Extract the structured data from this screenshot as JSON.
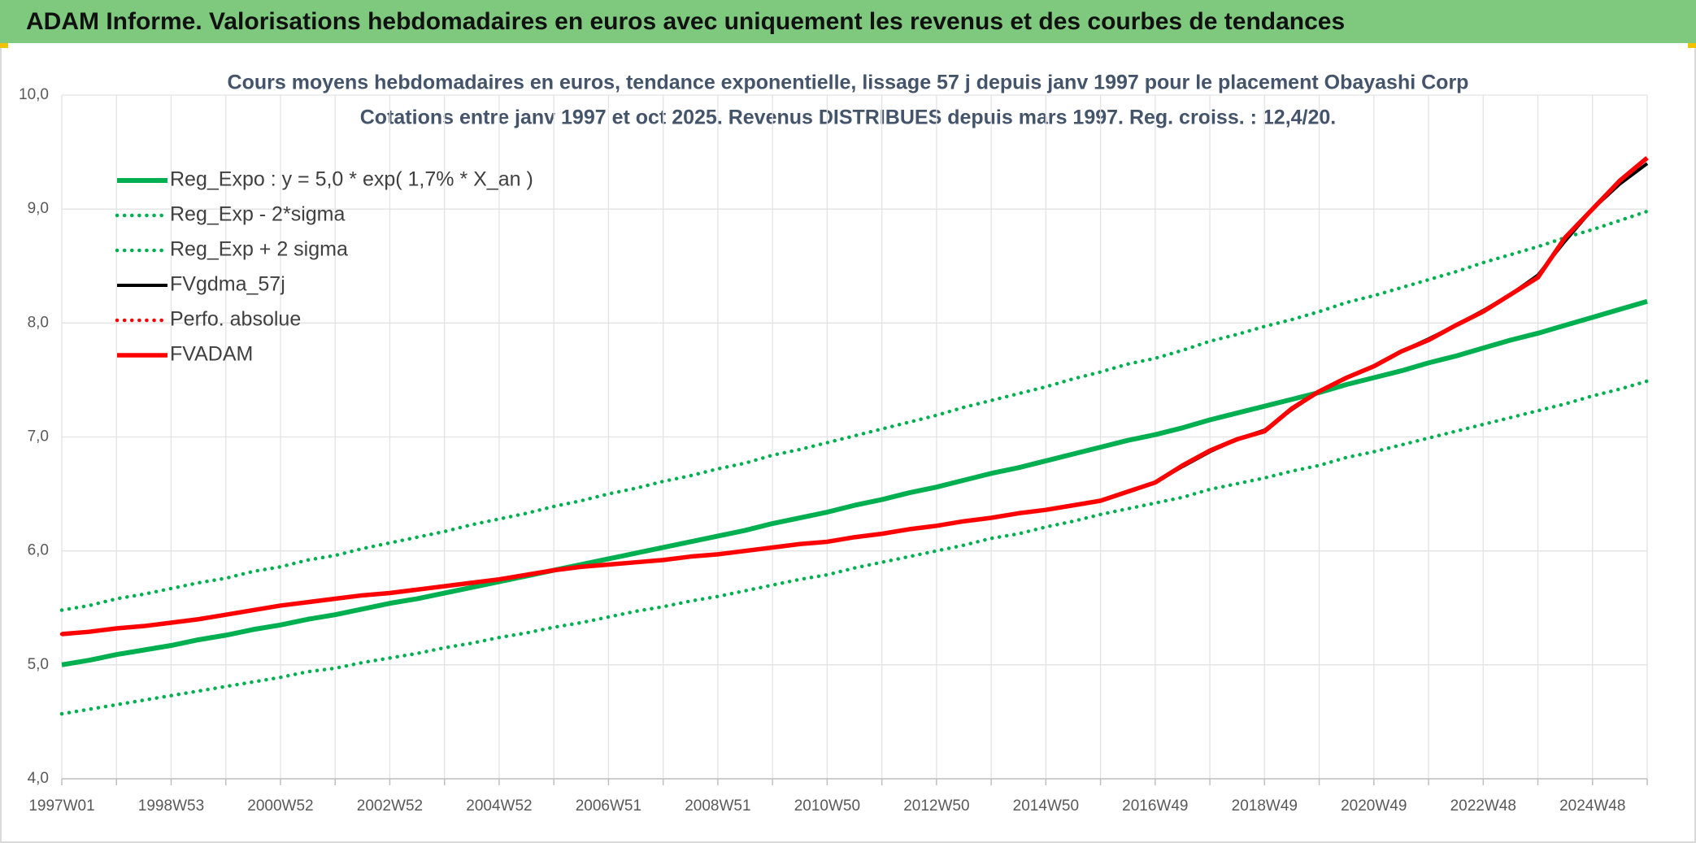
{
  "chart_data": {
    "type": "line",
    "header": "ADAM Informe. Valorisations hebdomadaires en euros avec uniquement les revenus et des courbes de tendances",
    "title": "Cours moyens hebdomadaires en euros, tendance exponentielle, lissage 57 j depuis janv 1997 pour le placement Obayashi Corp",
    "subtitle": "Cotations entre janv 1997 et oct 2025. Revenus DISTRIBUES depuis mars 1997. Reg. croiss. : 12,4/20.",
    "categories": [
      "1997W01",
      null,
      null,
      null,
      "1998W53",
      null,
      null,
      null,
      "2000W52",
      null,
      null,
      null,
      "2002W52",
      null,
      null,
      null,
      "2004W52",
      null,
      null,
      null,
      "2006W51",
      null,
      null,
      null,
      "2008W51",
      null,
      null,
      null,
      "2010W50",
      null,
      null,
      null,
      "2012W50",
      null,
      null,
      null,
      "2014W50",
      null,
      null,
      null,
      "2016W49",
      null,
      null,
      null,
      "2018W49",
      null,
      null,
      null,
      "2020W49",
      null,
      null,
      null,
      "2022W48",
      null,
      null,
      null,
      "2024W48",
      null,
      null
    ],
    "ylim": [
      4,
      10
    ],
    "yticks": [
      {
        "value": 4,
        "label": "4,0"
      },
      {
        "value": 5,
        "label": "5,0"
      },
      {
        "value": 6,
        "label": "6,0"
      },
      {
        "value": 7,
        "label": "7,0"
      },
      {
        "value": 8,
        "label": "8,0"
      },
      {
        "value": 9,
        "label": "9,0"
      },
      {
        "value": 10,
        "label": "10,0"
      }
    ],
    "grid": true,
    "legend": "upper left",
    "series": [
      {
        "name": "Reg_Expo : y = 5,0 * exp( 1,7% *  X_an )",
        "color": "#00b050",
        "style": "solid",
        "values": [
          5.0,
          5.04,
          5.09,
          5.13,
          5.17,
          5.22,
          5.26,
          5.31,
          5.35,
          5.4,
          5.44,
          5.49,
          5.54,
          5.58,
          5.63,
          5.68,
          5.73,
          5.78,
          5.83,
          5.88,
          5.93,
          5.98,
          6.03,
          6.08,
          6.13,
          6.18,
          6.24,
          6.29,
          6.34,
          6.4,
          6.45,
          6.51,
          6.56,
          6.62,
          6.68,
          6.73,
          6.79,
          6.85,
          6.91,
          6.97,
          7.02,
          7.08,
          7.15,
          7.21,
          7.27,
          7.33,
          7.39,
          7.46,
          7.52,
          7.58,
          7.65,
          7.71,
          7.78,
          7.85,
          7.91,
          7.98,
          8.05,
          8.12,
          8.19
        ]
      },
      {
        "name": "Reg_Exp - 2*sigma",
        "color": "#00b050",
        "style": "dotted",
        "values": [
          4.57,
          4.61,
          4.65,
          4.69,
          4.73,
          4.77,
          4.81,
          4.85,
          4.89,
          4.94,
          4.97,
          5.02,
          5.06,
          5.1,
          5.15,
          5.19,
          5.24,
          5.28,
          5.33,
          5.37,
          5.42,
          5.47,
          5.51,
          5.56,
          5.6,
          5.65,
          5.7,
          5.75,
          5.79,
          5.85,
          5.9,
          5.95,
          6.0,
          6.05,
          6.11,
          6.15,
          6.21,
          6.26,
          6.32,
          6.37,
          6.42,
          6.47,
          6.54,
          6.59,
          6.64,
          6.7,
          6.75,
          6.82,
          6.87,
          6.93,
          6.99,
          7.05,
          7.11,
          7.17,
          7.23,
          7.29,
          7.36,
          7.42,
          7.49
        ]
      },
      {
        "name": "Reg_Exp + 2 sigma",
        "color": "#00b050",
        "style": "dotted",
        "values": [
          5.48,
          5.52,
          5.58,
          5.62,
          5.67,
          5.72,
          5.76,
          5.82,
          5.86,
          5.92,
          5.96,
          6.02,
          6.07,
          6.12,
          6.17,
          6.23,
          6.28,
          6.33,
          6.39,
          6.44,
          6.5,
          6.55,
          6.61,
          6.66,
          6.72,
          6.77,
          6.84,
          6.89,
          6.95,
          7.01,
          7.07,
          7.13,
          7.19,
          7.26,
          7.32,
          7.38,
          7.44,
          7.51,
          7.57,
          7.64,
          7.69,
          7.76,
          7.84,
          7.9,
          7.97,
          8.03,
          8.1,
          8.18,
          8.24,
          8.31,
          8.38,
          8.45,
          8.53,
          8.6,
          8.67,
          8.75,
          8.82,
          8.9,
          8.98
        ]
      },
      {
        "name": "FVgdma_57j",
        "color": "#000000",
        "style": "solid",
        "values": [
          5.27,
          5.29,
          5.32,
          5.34,
          5.37,
          5.4,
          5.44,
          5.48,
          5.52,
          5.55,
          5.58,
          5.61,
          5.63,
          5.66,
          5.69,
          5.72,
          5.75,
          5.79,
          5.83,
          5.86,
          5.88,
          5.9,
          5.92,
          5.95,
          5.97,
          6.0,
          6.03,
          6.06,
          6.08,
          6.12,
          6.15,
          6.19,
          6.22,
          6.26,
          6.29,
          6.33,
          6.36,
          6.4,
          6.44,
          6.52,
          6.6,
          6.74,
          6.87,
          6.98,
          7.06,
          7.24,
          7.4,
          7.52,
          7.62,
          7.75,
          7.86,
          7.98,
          8.11,
          8.25,
          8.42,
          8.72,
          9.0,
          9.22,
          9.4
        ]
      },
      {
        "name": "Perfo. absolue",
        "color": "#ff0000",
        "style": "dotted",
        "values": [
          5.27,
          5.29,
          5.32,
          5.34,
          5.37,
          5.4,
          5.44,
          5.48,
          5.52,
          5.55,
          5.58,
          5.61,
          5.63,
          5.66,
          5.69,
          5.72,
          5.75,
          5.79,
          5.83,
          5.86,
          5.88,
          5.9,
          5.92,
          5.95,
          5.97,
          6.0,
          6.03,
          6.06,
          6.08,
          6.12,
          6.15,
          6.19,
          6.22,
          6.26,
          6.29,
          6.33,
          6.36,
          6.4,
          6.44,
          6.52,
          6.6,
          6.75,
          6.88,
          6.98,
          7.05,
          7.25,
          7.4,
          7.52,
          7.62,
          7.75,
          7.85,
          7.98,
          8.1,
          8.25,
          8.4,
          8.75,
          9.0,
          9.25,
          9.45
        ]
      },
      {
        "name": "FVADAM",
        "color": "#ff0000",
        "style": "solid",
        "values": [
          5.27,
          5.29,
          5.32,
          5.34,
          5.37,
          5.4,
          5.44,
          5.48,
          5.52,
          5.55,
          5.58,
          5.61,
          5.63,
          5.66,
          5.69,
          5.72,
          5.75,
          5.79,
          5.83,
          5.86,
          5.88,
          5.9,
          5.92,
          5.95,
          5.97,
          6.0,
          6.03,
          6.06,
          6.08,
          6.12,
          6.15,
          6.19,
          6.22,
          6.26,
          6.29,
          6.33,
          6.36,
          6.4,
          6.44,
          6.52,
          6.6,
          6.75,
          6.88,
          6.98,
          7.05,
          7.25,
          7.4,
          7.52,
          7.62,
          7.75,
          7.85,
          7.98,
          8.1,
          8.25,
          8.4,
          8.75,
          9.0,
          9.25,
          9.45
        ]
      }
    ]
  }
}
